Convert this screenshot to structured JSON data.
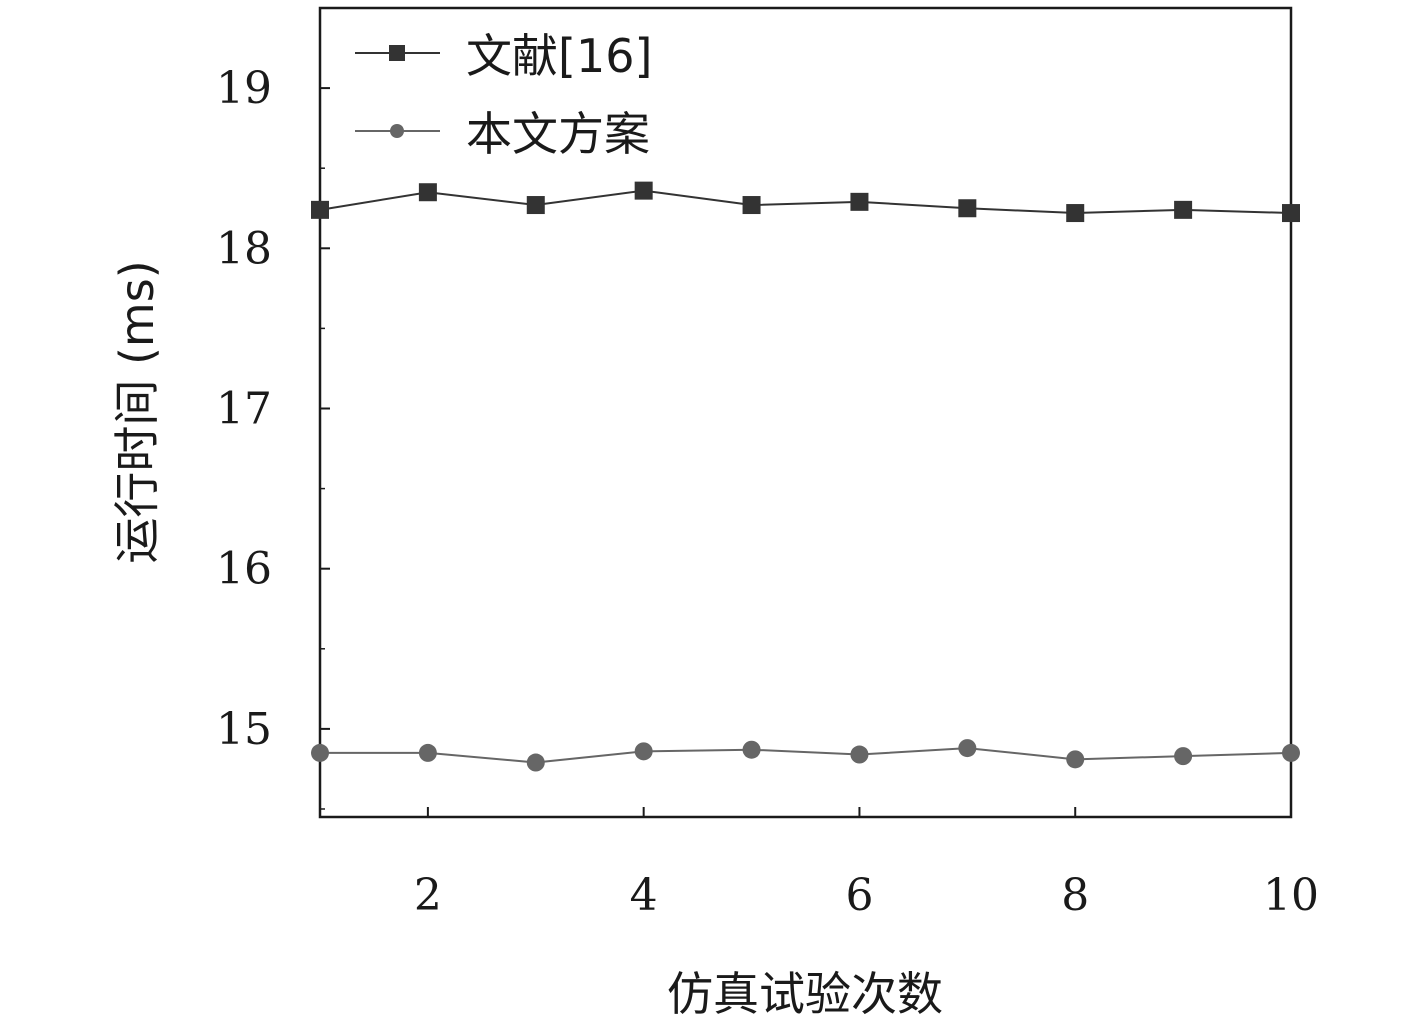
{
  "chart_data": {
    "type": "line",
    "xlabel": "仿真试验次数",
    "ylabel": "运行时间 (ms)",
    "xlim": [
      1,
      10
    ],
    "ylim": [
      14.45,
      19.5
    ],
    "xticks": [
      2,
      4,
      6,
      8,
      10
    ],
    "yticks": [
      15,
      16,
      17,
      18,
      19
    ],
    "x": [
      1,
      2,
      3,
      4,
      5,
      6,
      7,
      8,
      9,
      10
    ],
    "series": [
      {
        "name": "文献[16]",
        "marker": "square",
        "color": "#333333",
        "values": [
          18.24,
          18.35,
          18.27,
          18.36,
          18.27,
          18.29,
          18.25,
          18.22,
          18.24,
          18.22
        ]
      },
      {
        "name": "本文方案",
        "marker": "circle",
        "color": "#666666",
        "values": [
          14.85,
          14.85,
          14.79,
          14.86,
          14.87,
          14.84,
          14.88,
          14.81,
          14.83,
          14.85
        ]
      }
    ],
    "legend": "top-left",
    "grid": false
  }
}
